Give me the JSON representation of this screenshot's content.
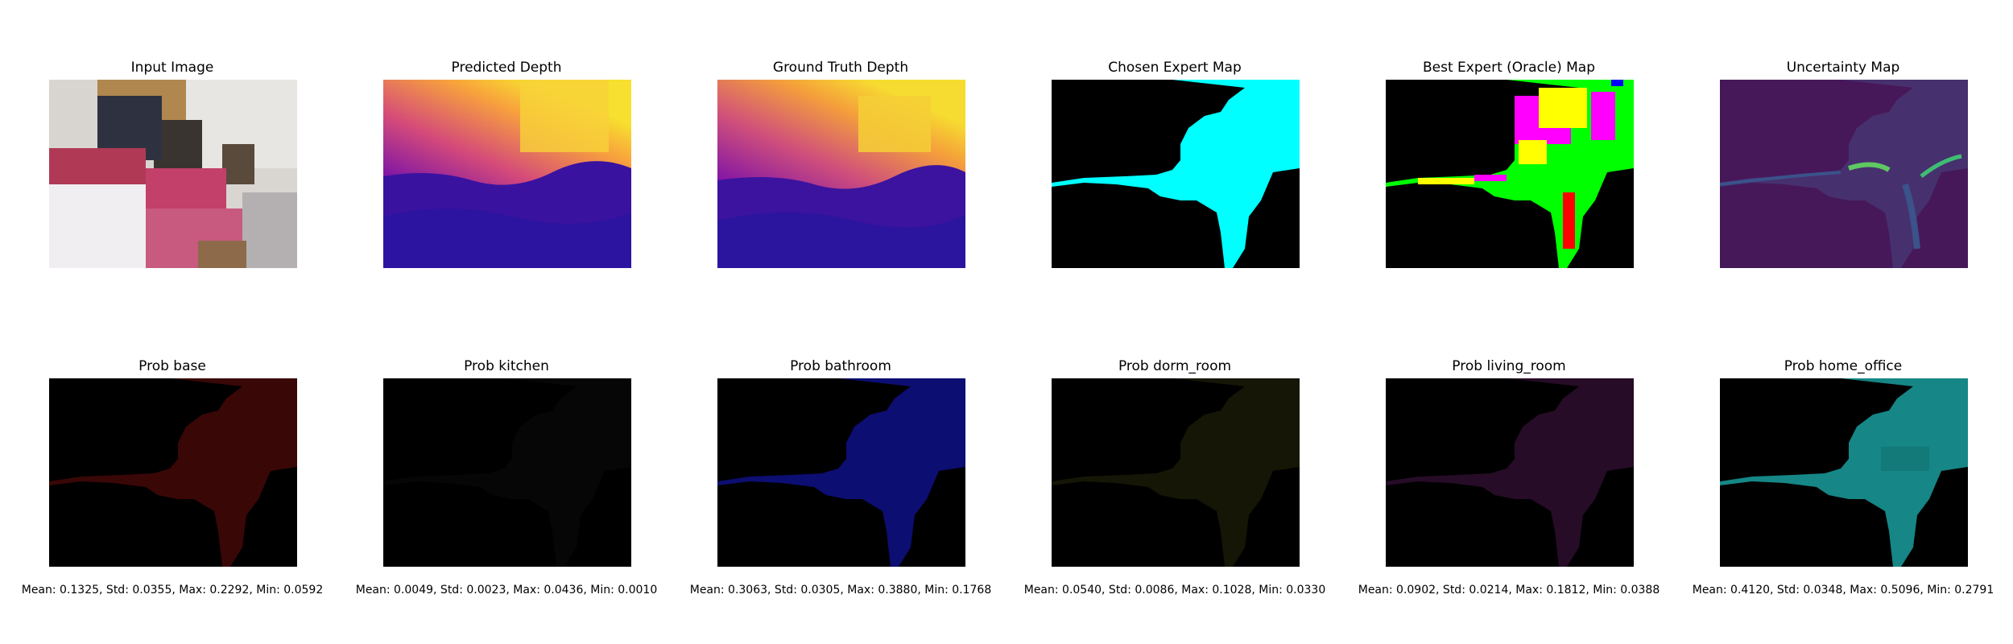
{
  "top_row": [
    {
      "key": "input",
      "title": "Input Image"
    },
    {
      "key": "pred",
      "title": "Predicted Depth"
    },
    {
      "key": "gt",
      "title": "Ground Truth Depth"
    },
    {
      "key": "chosen",
      "title": "Chosen Expert Map"
    },
    {
      "key": "oracle",
      "title": "Best Expert (Oracle) Map"
    },
    {
      "key": "uncert",
      "title": "Uncertainty Map"
    }
  ],
  "bottom_row": [
    {
      "key": "base",
      "title": "Prob base",
      "color": "#6a0c0c",
      "stats": "Mean: 0.1325, Std: 0.0355, Max: 0.2292, Min: 0.0592"
    },
    {
      "key": "kitchen",
      "title": "Prob kitchen",
      "color": "#0b0b0b",
      "stats": "Mean: 0.0049, Std: 0.0023, Max: 0.0436, Min: 0.0010"
    },
    {
      "key": "bathroom",
      "title": "Prob bathroom",
      "color": "#0d0f80",
      "stats": "Mean: 0.3063, Std: 0.0305, Max: 0.3880, Min: 0.1768"
    },
    {
      "key": "dorm_room",
      "title": "Prob dorm_room",
      "color": "#1c1c08",
      "stats": "Mean: 0.0540, Std: 0.0086, Max: 0.1028, Min: 0.0330"
    },
    {
      "key": "living_room",
      "title": "Prob living_room",
      "color": "#2f0f2f",
      "stats": "Mean: 0.0902, Std: 0.0214, Max: 0.1812, Min: 0.0388"
    },
    {
      "key": "home_office",
      "title": "Prob home_office",
      "color": "#1e8c8c",
      "stats": "Mean: 0.4120, Std: 0.0348, Max: 0.5096, Min: 0.2791"
    }
  ],
  "colors": {
    "chosen_mask": "#00ffff",
    "uncert_bg": "#46185a",
    "uncert_mid": "#3b528b",
    "uncert_high": "#5ec962"
  }
}
